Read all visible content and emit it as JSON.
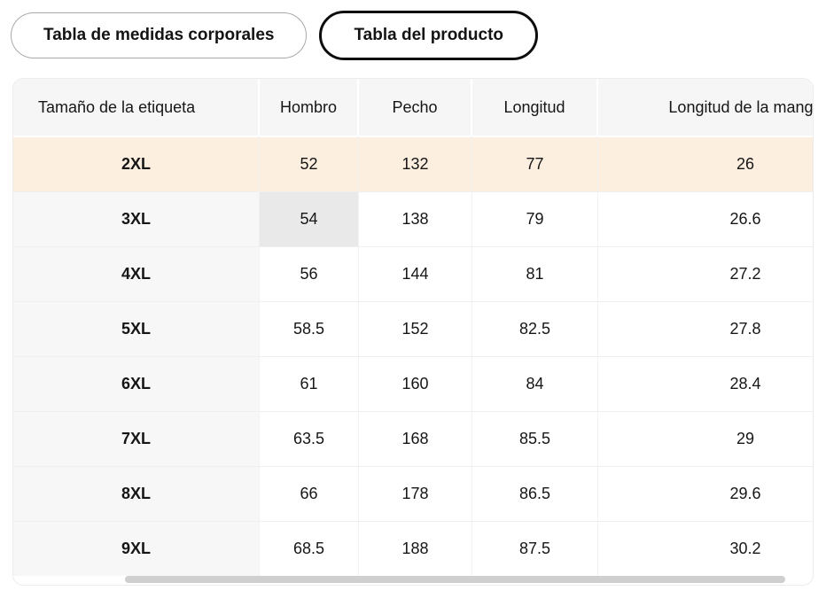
{
  "tabs": {
    "body_measurements": {
      "label": "Tabla de medidas corporales",
      "selected": false
    },
    "product": {
      "label": "Tabla del producto",
      "selected": true
    }
  },
  "table": {
    "columns": [
      "Tamaño de la etiqueta",
      "Hombro",
      "Pecho",
      "Longitud",
      "Longitud de la manga"
    ],
    "rows": [
      {
        "size": "2XL",
        "values": [
          "52",
          "132",
          "77",
          "26"
        ],
        "highlight": "row"
      },
      {
        "size": "3XL",
        "values": [
          "54",
          "138",
          "79",
          "26.6"
        ],
        "highlight": "cell",
        "highlight_value_index": 0
      },
      {
        "size": "4XL",
        "values": [
          "56",
          "144",
          "81",
          "27.2"
        ]
      },
      {
        "size": "5XL",
        "values": [
          "58.5",
          "152",
          "82.5",
          "27.8"
        ]
      },
      {
        "size": "6XL",
        "values": [
          "61",
          "160",
          "84",
          "28.4"
        ]
      },
      {
        "size": "7XL",
        "values": [
          "63.5",
          "168",
          "85.5",
          "29"
        ]
      },
      {
        "size": "8XL",
        "values": [
          "66",
          "178",
          "86.5",
          "29.6"
        ]
      },
      {
        "size": "9XL",
        "values": [
          "68.5",
          "188",
          "87.5",
          "30.2"
        ]
      }
    ]
  },
  "scrollbar": {
    "orientation": "horizontal"
  },
  "colors": {
    "highlight_row_bg": "#fcefe0",
    "highlight_cell_bg": "#e9e9e9",
    "header_bg": "#f6f6f6",
    "label_col_bg": "#f7f7f7",
    "selected_tab_border": "#0d0d0d",
    "unselected_tab_border": "#a9a9a9",
    "scrollbar_thumb": "#cfcfcf"
  }
}
